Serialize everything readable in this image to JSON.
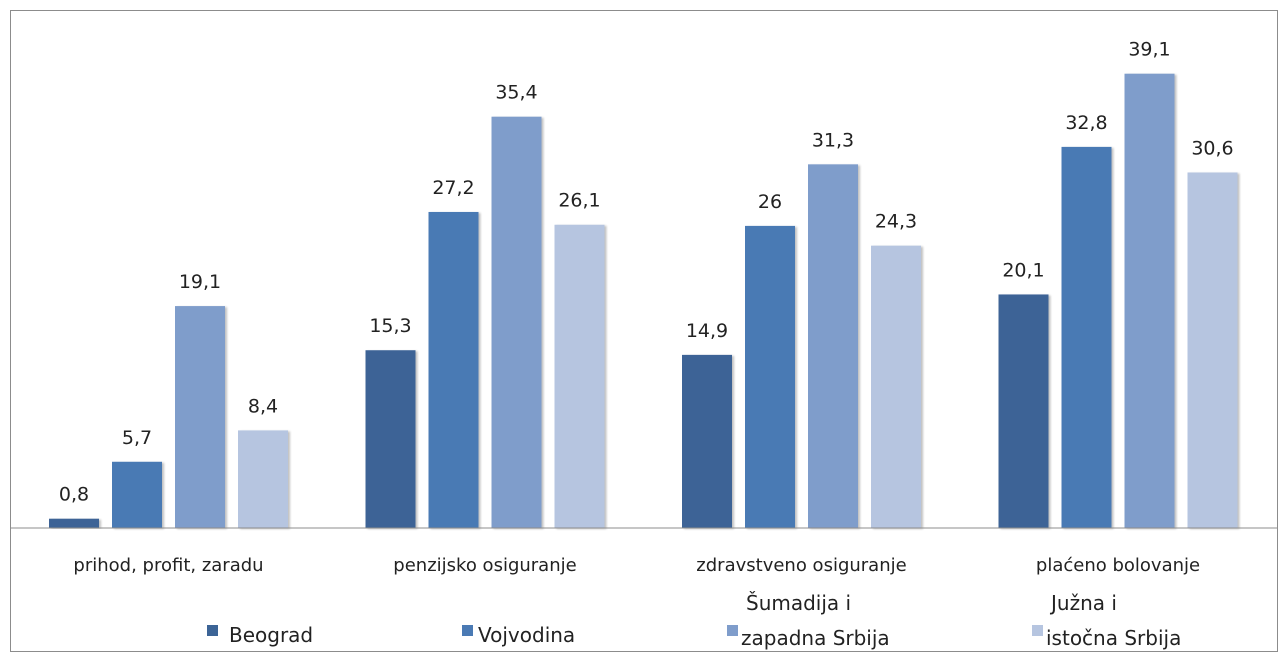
{
  "chart_data": {
    "type": "bar",
    "title": "",
    "xlabel": "",
    "ylabel": "",
    "ylim": [
      0,
      42
    ],
    "grid": false,
    "legend_placement": "bottom",
    "categories": [
      "prihod, profit, zaradu",
      "penzijsko osiguranje",
      "zdravstveno osiguranje",
      "plaćeno bolovanje"
    ],
    "series": [
      {
        "name": "Beograd",
        "color": "#3c6496",
        "values": [
          0.8,
          15.3,
          14.9,
          20.1
        ]
      },
      {
        "name": "Vojvodina",
        "color": "#4a7ab4",
        "values": [
          5.7,
          27.2,
          26,
          32.8
        ]
      },
      {
        "name": "Šumadija i zapadna Srbija",
        "name_line1": "Šumadija i",
        "name_line2": "zapadna Srbija",
        "color": "#7f9dcb",
        "values": [
          19.1,
          35.4,
          31.3,
          39.1
        ]
      },
      {
        "name": "Južna i istočna Srbija",
        "name_line1": "Južna i",
        "name_line2": "istočna Srbija",
        "color": "#b6c5e0",
        "values": [
          8.4,
          26.1,
          24.3,
          30.6
        ]
      }
    ],
    "value_labels": [
      [
        "0,8",
        "15,3",
        "14,9",
        "20,1"
      ],
      [
        "5,7",
        "27,2",
        "26",
        "32,8"
      ],
      [
        "19,1",
        "35,4",
        "31,3",
        "39,1"
      ],
      [
        "8,4",
        "26,1",
        "24,3",
        "30,6"
      ]
    ]
  }
}
